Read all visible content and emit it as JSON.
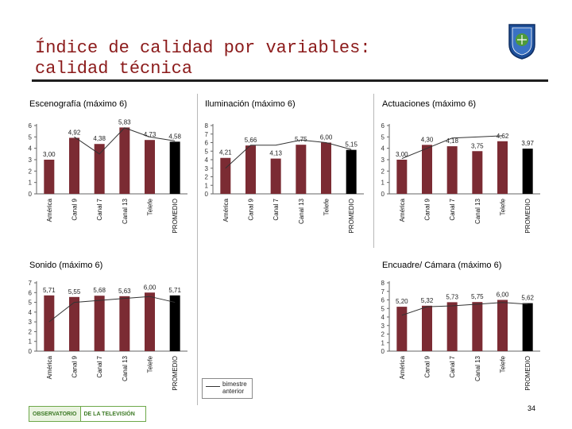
{
  "slide": {
    "title_line1": "Índice de calidad por variables:",
    "title_line2": "calidad técnica",
    "page_number": "34",
    "logo_left": "OBSERVATORIO",
    "logo_right": "DE LA TELEVISIÓN",
    "legend_label_line1": "bimestre",
    "legend_label_line2": "anterior"
  },
  "colors": {
    "bar": "#7b2b33",
    "average_bar": "#000000",
    "trend_line": "#333333",
    "title": "#8b1a1a"
  },
  "chart_data": [
    {
      "type": "bar",
      "title": "Escenografía (máximo 6)",
      "categories": [
        "América",
        "Canal 9",
        "Canal 7",
        "Canal 13",
        "Telefe",
        "PROMEDIO"
      ],
      "values": [
        3.0,
        4.92,
        4.38,
        5.83,
        4.73,
        4.58
      ],
      "value_labels": [
        "3,00",
        "4,92",
        "4,38",
        "5,83",
        "4,73",
        "4,58"
      ],
      "y_ticks": [
        0,
        1,
        2,
        3,
        4,
        5,
        6
      ],
      "ylim": [
        0,
        6
      ],
      "previous_period": [
        null,
        5.0,
        3.5,
        5.8,
        5.0,
        4.65
      ]
    },
    {
      "type": "bar",
      "title": "Iluminación (máximo 6)",
      "categories": [
        "América",
        "Canal 9",
        "Canal 7",
        "Canal 13",
        "Telefe",
        "PROMEDIO"
      ],
      "values": [
        4.21,
        5.66,
        4.13,
        5.75,
        6.0,
        5.15
      ],
      "value_labels": [
        "4,21",
        "5,66",
        "4,13",
        "5,75",
        "6,00",
        "5,15"
      ],
      "y_ticks": [
        0,
        1,
        2,
        3,
        4,
        5,
        6,
        7,
        8
      ],
      "ylim": [
        0,
        8
      ],
      "previous_period": [
        3.0,
        5.7,
        5.7,
        6.3,
        6.0,
        5.2
      ]
    },
    {
      "type": "bar",
      "title": "Actuaciones (máximo 6)",
      "categories": [
        "América",
        "Canal 9",
        "Canal 7",
        "Canal 13",
        "Telefe",
        "PROMEDIO"
      ],
      "values": [
        3.0,
        4.3,
        4.18,
        3.75,
        4.62,
        3.97
      ],
      "value_labels": [
        "3,00",
        "4,30",
        "4,18",
        "3,75",
        "4,62",
        "3,97"
      ],
      "y_ticks": [
        0,
        1,
        2,
        3,
        4,
        5,
        6
      ],
      "ylim": [
        0,
        6
      ],
      "previous_period": [
        3.1,
        4.0,
        4.9,
        5.0,
        5.1,
        null
      ]
    },
    {
      "type": "bar",
      "title": "Sonido (máximo 6)",
      "categories": [
        "América",
        "Canal 9",
        "Canal 7",
        "Canal 13",
        "Telefe",
        "PROMEDIO"
      ],
      "values": [
        5.71,
        5.55,
        5.68,
        5.63,
        6.0,
        5.71
      ],
      "value_labels": [
        "5,71",
        "5,55",
        "5,68",
        "5,63",
        "6,00",
        "5,71"
      ],
      "y_ticks": [
        0,
        1,
        2,
        3,
        4,
        5,
        6,
        7
      ],
      "ylim": [
        0,
        7
      ],
      "previous_period": [
        3.0,
        5.0,
        5.2,
        5.4,
        5.6,
        5.0
      ]
    },
    {
      "type": "bar",
      "title": "Encuadre/ Cámara (máximo 6)",
      "categories": [
        "América",
        "Canal 9",
        "Canal 7",
        "Canal 13",
        "Telefe",
        "PROMEDIO"
      ],
      "values": [
        5.2,
        5.32,
        5.73,
        5.75,
        6.0,
        5.62
      ],
      "value_labels": [
        "5,20",
        "5,32",
        "5,73",
        "5,75",
        "6,00",
        "5,62"
      ],
      "y_ticks": [
        0,
        1,
        2,
        3,
        4,
        5,
        6,
        7,
        8
      ],
      "ylim": [
        0,
        8
      ],
      "previous_period": [
        4.2,
        5.2,
        5.3,
        5.5,
        5.7,
        5.5
      ]
    }
  ]
}
